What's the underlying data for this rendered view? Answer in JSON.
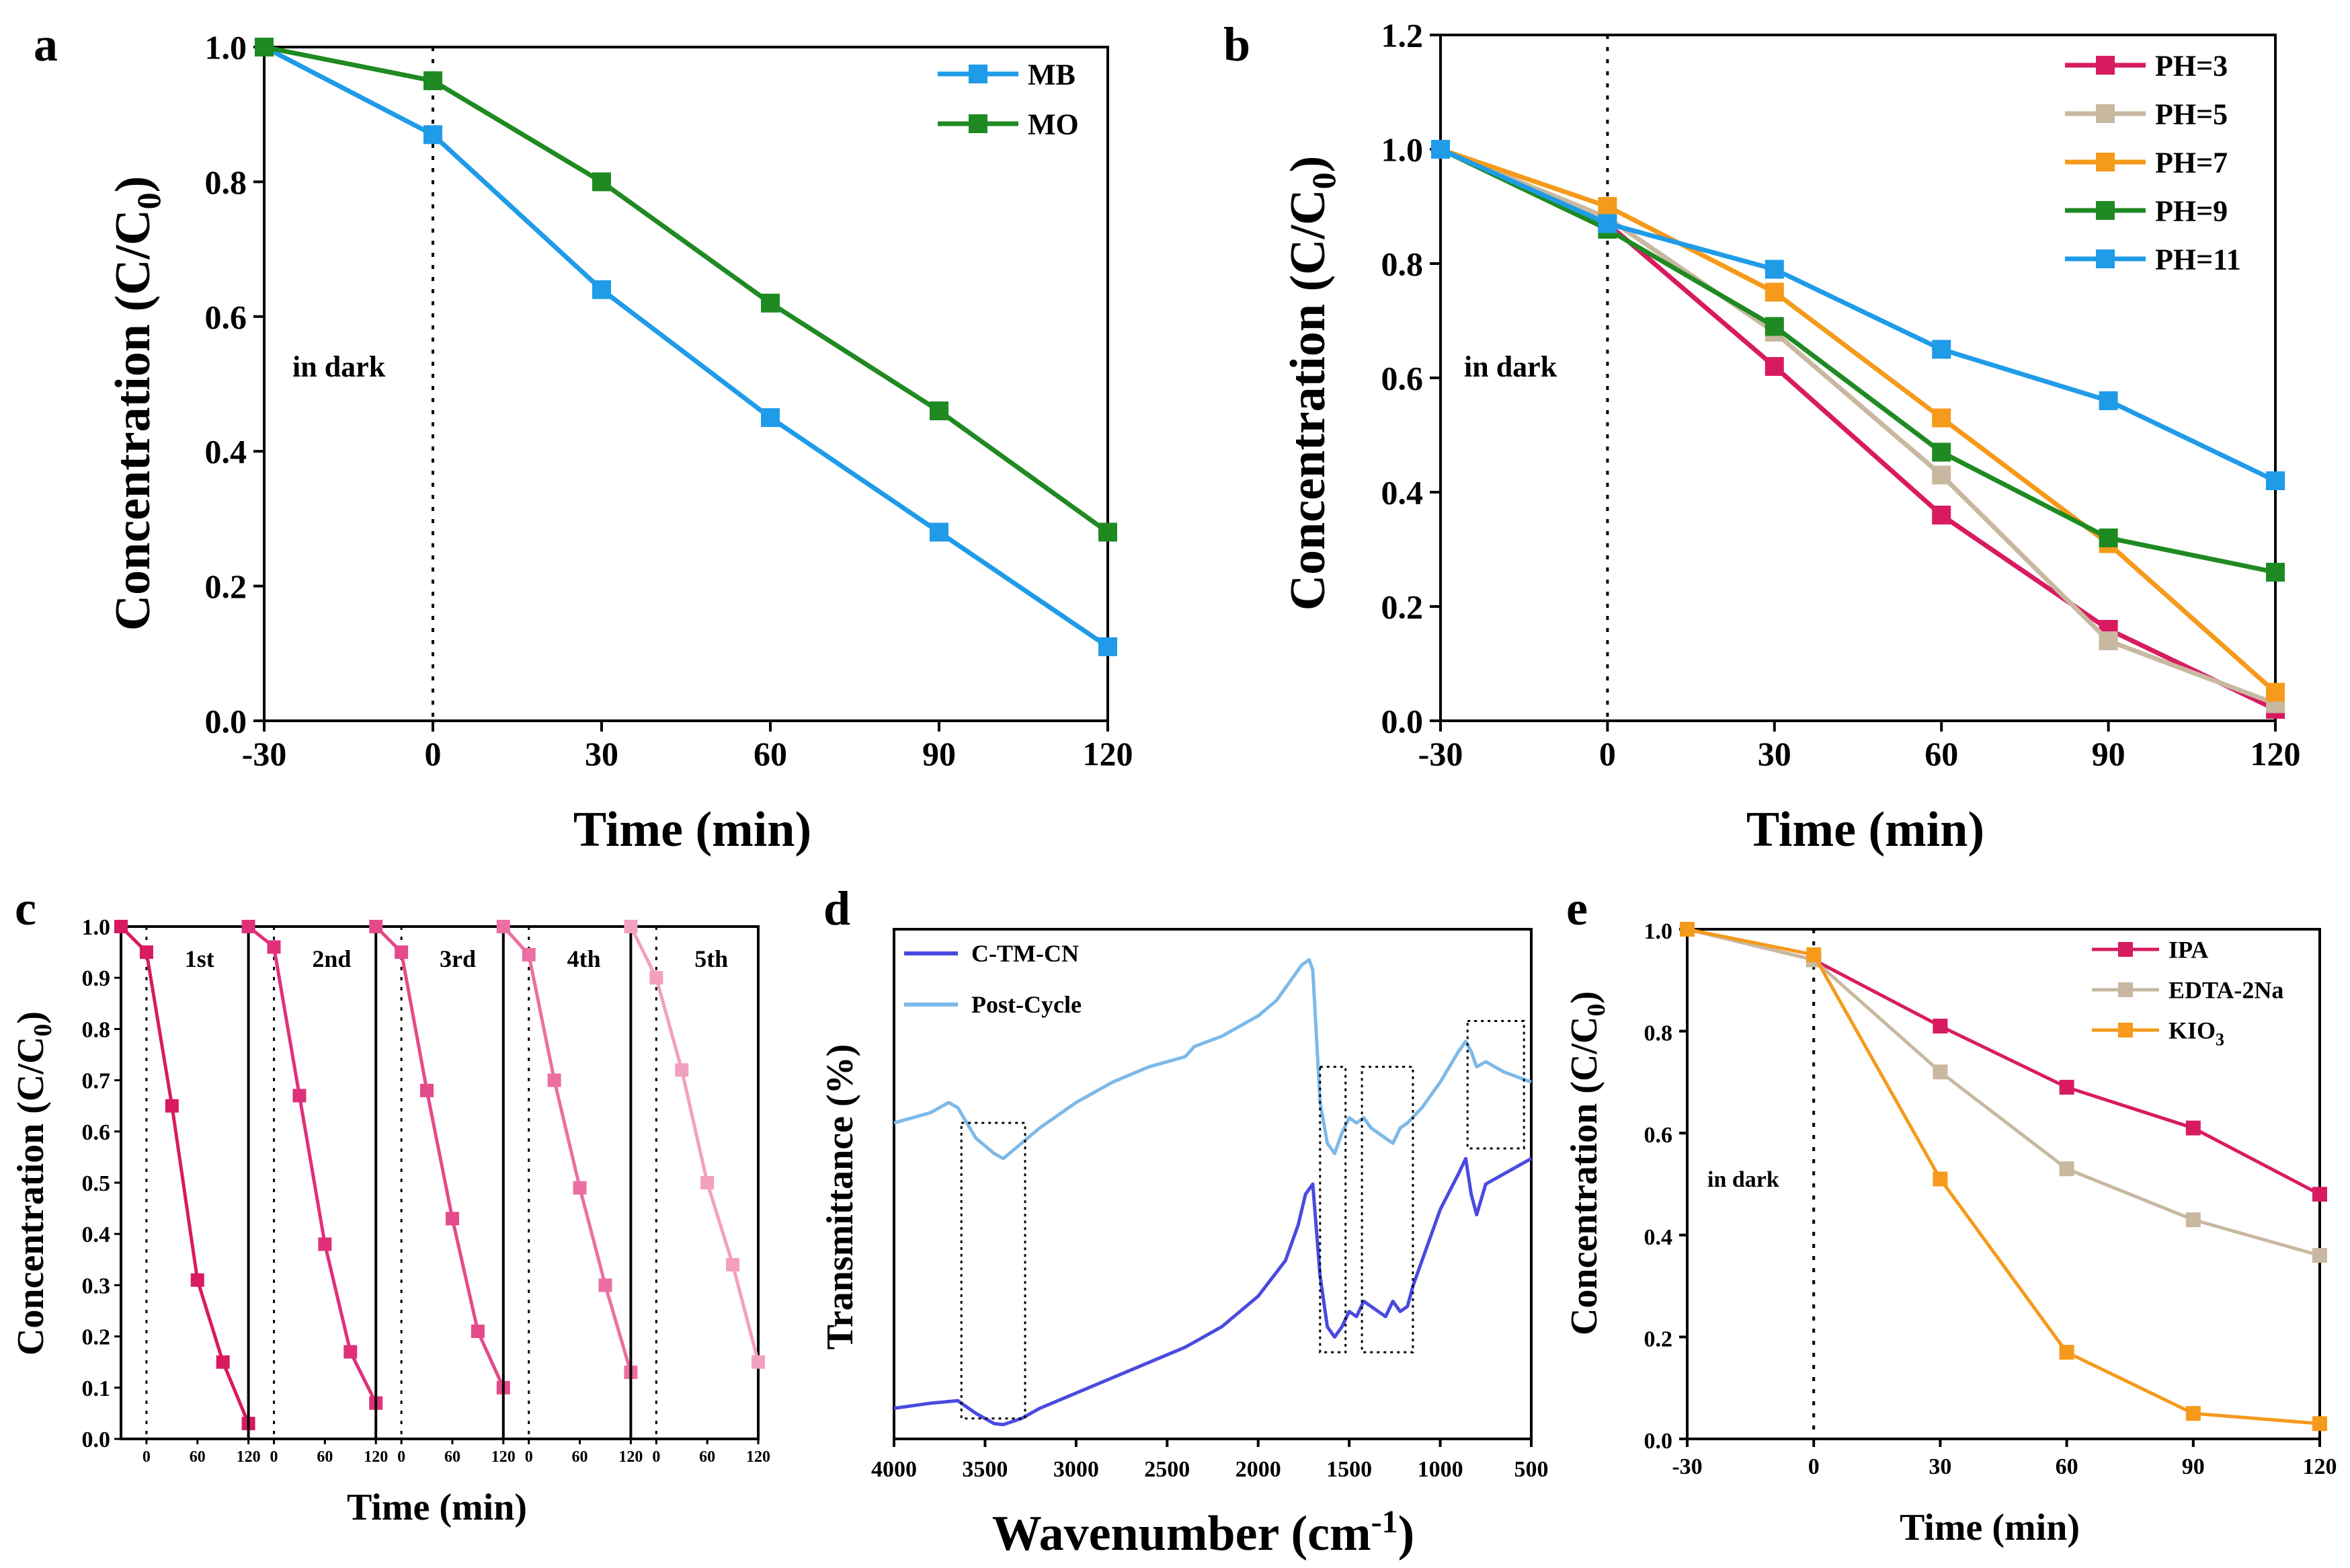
{
  "chart_data": [
    {
      "id": "a",
      "type": "line",
      "panel_label": "a",
      "xlabel": "Time (min)",
      "ylabel": "Concentration (C/C0)",
      "xlim": [
        -30,
        120
      ],
      "ylim": [
        0.0,
        1.0
      ],
      "xticks": [
        "-30",
        "0",
        "30",
        "60",
        "90",
        "120"
      ],
      "yticks": [
        "0.0",
        "0.2",
        "0.4",
        "0.6",
        "0.8",
        "1.0"
      ],
      "x": [
        -30,
        0,
        30,
        60,
        90,
        120
      ],
      "annotation": "in dark",
      "legend_position": "top-right",
      "series": [
        {
          "name": "MB",
          "color": "#1f9be8",
          "values": [
            1.0,
            0.87,
            0.64,
            0.45,
            0.28,
            0.11
          ]
        },
        {
          "name": "MO",
          "color": "#1f8a22",
          "values": [
            1.0,
            0.95,
            0.8,
            0.62,
            0.46,
            0.28
          ]
        }
      ]
    },
    {
      "id": "b",
      "type": "line",
      "panel_label": "b",
      "xlabel": "Time (min)",
      "ylabel": "Concentration (C/C0)",
      "xlim": [
        -30,
        120
      ],
      "ylim": [
        0.0,
        1.2
      ],
      "xticks": [
        "-30",
        "0",
        "30",
        "60",
        "90",
        "120"
      ],
      "yticks": [
        "0.0",
        "0.2",
        "0.4",
        "0.6",
        "0.8",
        "1.0",
        "1.2"
      ],
      "x": [
        -30,
        0,
        30,
        60,
        90,
        120
      ],
      "annotation": "in dark",
      "legend_position": "top-right",
      "series": [
        {
          "name": "PH=3",
          "color": "#d81b60",
          "values": [
            1.0,
            0.87,
            0.62,
            0.36,
            0.16,
            0.02
          ]
        },
        {
          "name": "PH=5",
          "color": "#c8b8a0",
          "values": [
            1.0,
            0.88,
            0.68,
            0.43,
            0.14,
            0.03
          ]
        },
        {
          "name": "PH=7",
          "color": "#f59a1b",
          "values": [
            1.0,
            0.9,
            0.75,
            0.53,
            0.31,
            0.05
          ]
        },
        {
          "name": "PH=9",
          "color": "#1f8a22",
          "values": [
            1.0,
            0.86,
            0.69,
            0.47,
            0.32,
            0.26
          ]
        },
        {
          "name": "PH=11",
          "color": "#1f9be8",
          "values": [
            1.0,
            0.87,
            0.79,
            0.65,
            0.56,
            0.42
          ]
        }
      ]
    },
    {
      "id": "c",
      "type": "line",
      "panel_label": "c",
      "xlabel": "Time (min)",
      "ylabel": "Concentration (C/C0)",
      "ylim": [
        0.0,
        1.0
      ],
      "yticks": [
        "0.0",
        "0.1",
        "0.2",
        "0.3",
        "0.4",
        "0.5",
        "0.6",
        "0.7",
        "0.8",
        "0.9",
        "1.0"
      ],
      "xticks": [
        "0",
        "60",
        "120"
      ],
      "x": [
        -30,
        0,
        30,
        60,
        90,
        120
      ],
      "series": [
        {
          "name": "1st",
          "color": "#d81b60",
          "values": [
            1.0,
            0.95,
            0.65,
            0.31,
            0.15,
            0.03
          ]
        },
        {
          "name": "2nd",
          "color": "#e0307a",
          "values": [
            1.0,
            0.96,
            0.67,
            0.38,
            0.17,
            0.07
          ]
        },
        {
          "name": "3rd",
          "color": "#e54a8a",
          "values": [
            1.0,
            0.95,
            0.68,
            0.43,
            0.21,
            0.1
          ]
        },
        {
          "name": "4th",
          "color": "#eb6fa2",
          "values": [
            1.0,
            0.945,
            0.7,
            0.49,
            0.3,
            0.13
          ]
        },
        {
          "name": "5th",
          "color": "#f3a0c0",
          "values": [
            1.0,
            0.9,
            0.72,
            0.5,
            0.34,
            0.15
          ]
        }
      ]
    },
    {
      "id": "d",
      "type": "line",
      "panel_label": "d",
      "xlabel": "Wavenumber (cm-1)",
      "ylabel": "Transmittance (%)",
      "xlim": [
        4000,
        500
      ],
      "xticks": [
        "4000",
        "3500",
        "3000",
        "2500",
        "2000",
        "1500",
        "1000",
        "500"
      ],
      "series": [
        {
          "name": "C-TM-CN",
          "color": "#4a4ae0",
          "x": [
            4000,
            3800,
            3650,
            3550,
            3450,
            3400,
            3300,
            3200,
            3000,
            2800,
            2600,
            2400,
            2200,
            2000,
            1850,
            1780,
            1740,
            1700,
            1660,
            1620,
            1580,
            1540,
            1500,
            1460,
            1420,
            1380,
            1340,
            1300,
            1260,
            1220,
            1180,
            1150,
            1100,
            1000,
            900,
            860,
            830,
            800,
            750,
            650,
            500
          ],
          "values": [
            0.06,
            0.07,
            0.075,
            0.05,
            0.03,
            0.028,
            0.04,
            0.06,
            0.09,
            0.12,
            0.15,
            0.18,
            0.22,
            0.28,
            0.35,
            0.42,
            0.48,
            0.5,
            0.32,
            0.22,
            0.2,
            0.22,
            0.25,
            0.24,
            0.27,
            0.26,
            0.25,
            0.24,
            0.27,
            0.25,
            0.26,
            0.3,
            0.35,
            0.45,
            0.52,
            0.55,
            0.48,
            0.44,
            0.5,
            0.52,
            0.55
          ]
        },
        {
          "name": "Post-Cycle",
          "color": "#7db9e8",
          "x": [
            4000,
            3800,
            3700,
            3650,
            3600,
            3550,
            3450,
            3400,
            3300,
            3200,
            3000,
            2800,
            2600,
            2400,
            2350,
            2200,
            2000,
            1900,
            1800,
            1760,
            1720,
            1700,
            1660,
            1620,
            1580,
            1540,
            1500,
            1460,
            1420,
            1380,
            1340,
            1300,
            1260,
            1220,
            1180,
            1100,
            1000,
            900,
            860,
            830,
            800,
            750,
            650,
            500
          ],
          "values": [
            0.62,
            0.64,
            0.66,
            0.65,
            0.62,
            0.59,
            0.56,
            0.55,
            0.58,
            0.61,
            0.66,
            0.7,
            0.73,
            0.75,
            0.77,
            0.79,
            0.83,
            0.86,
            0.91,
            0.93,
            0.94,
            0.92,
            0.66,
            0.58,
            0.56,
            0.6,
            0.63,
            0.62,
            0.63,
            0.61,
            0.6,
            0.59,
            0.58,
            0.61,
            0.62,
            0.65,
            0.7,
            0.76,
            0.78,
            0.76,
            0.73,
            0.74,
            0.72,
            0.7
          ]
        }
      ]
    },
    {
      "id": "e",
      "type": "line",
      "panel_label": "e",
      "xlabel": "Time (min)",
      "ylabel": "Concentration (C/C0)",
      "xlim": [
        -30,
        120
      ],
      "ylim": [
        0.0,
        1.0
      ],
      "xticks": [
        "-30",
        "0",
        "30",
        "60",
        "90",
        "120"
      ],
      "yticks": [
        "0.0",
        "0.2",
        "0.4",
        "0.6",
        "0.8",
        "1.0"
      ],
      "x": [
        -30,
        0,
        30,
        60,
        90,
        120
      ],
      "annotation": "in dark",
      "legend_position": "top-right",
      "series": [
        {
          "name": "IPA",
          "color": "#d81b60",
          "values": [
            1.0,
            0.94,
            0.81,
            0.69,
            0.61,
            0.48
          ]
        },
        {
          "name": "EDTA-2Na",
          "color": "#c8b8a0",
          "values": [
            1.0,
            0.94,
            0.72,
            0.53,
            0.43,
            0.36
          ]
        },
        {
          "name": "KIO3",
          "color": "#f59a1b",
          "values": [
            1.0,
            0.95,
            0.51,
            0.17,
            0.05,
            0.03
          ]
        }
      ]
    }
  ]
}
